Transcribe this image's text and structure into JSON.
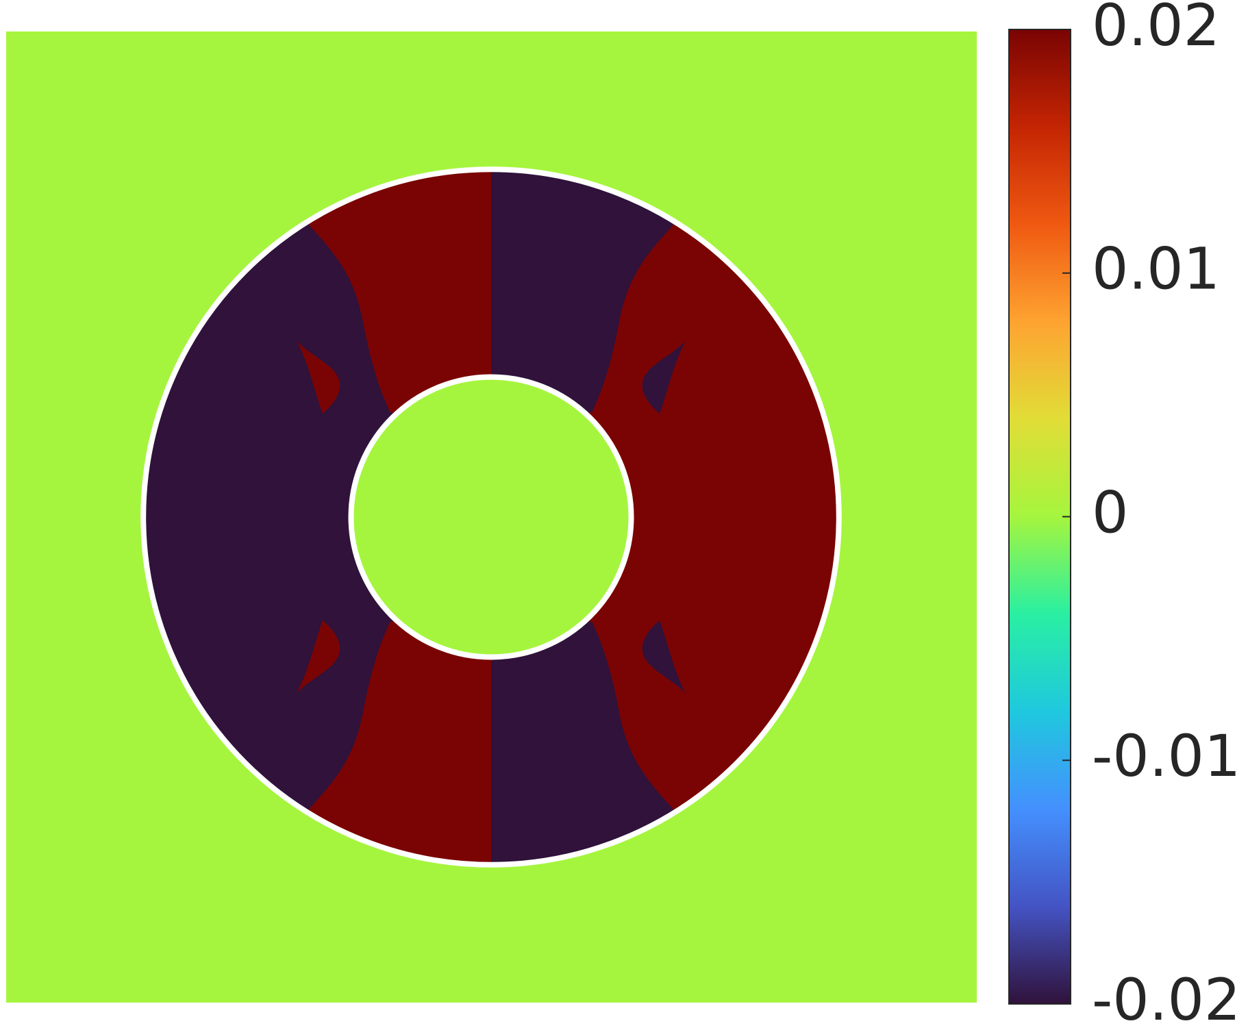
{
  "chart_data": {
    "type": "field",
    "colormap": "turbo",
    "clim": [
      -0.02,
      0.02
    ],
    "cticks": [
      -0.02,
      -0.01,
      0,
      0.01,
      0.02
    ]
  }
}
